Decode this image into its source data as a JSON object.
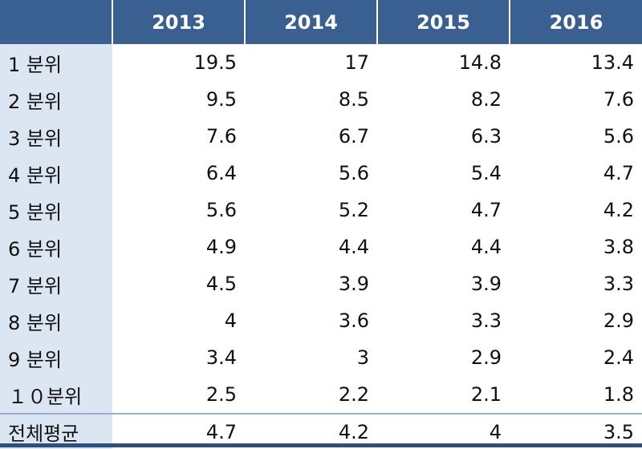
{
  "chart_data": {
    "type": "table",
    "columns": [
      "2013",
      "2014",
      "2015",
      "2016"
    ],
    "rows": [
      {
        "label": "1 분위",
        "values": [
          "19.5",
          "17",
          "14.8",
          "13.4"
        ]
      },
      {
        "label": "2 분위",
        "values": [
          "9.5",
          "8.5",
          "8.2",
          "7.6"
        ]
      },
      {
        "label": "3 분위",
        "values": [
          "7.6",
          "6.7",
          "6.3",
          "5.6"
        ]
      },
      {
        "label": "4 분위",
        "values": [
          "6.4",
          "5.6",
          "5.4",
          "4.7"
        ]
      },
      {
        "label": "5 분위",
        "values": [
          "5.6",
          "5.2",
          "4.7",
          "4.2"
        ]
      },
      {
        "label": "6 분위",
        "values": [
          "4.9",
          "4.4",
          "4.4",
          "3.8"
        ]
      },
      {
        "label": "7 분위",
        "values": [
          "4.5",
          "3.9",
          "3.9",
          "3.3"
        ]
      },
      {
        "label": "8 분위",
        "values": [
          "4",
          "3.6",
          "3.3",
          "2.9"
        ]
      },
      {
        "label": "9 분위",
        "values": [
          "3.4",
          "3",
          "2.9",
          "2.4"
        ]
      },
      {
        "label": "１０분위",
        "values": [
          "2.5",
          "2.2",
          "2.1",
          "1.8"
        ]
      }
    ],
    "total_row": {
      "label": "전체평균",
      "values": [
        "4.7",
        "4.2",
        "4",
        "3.5"
      ]
    },
    "colors": {
      "header_bg": "#3a5f91",
      "label_bg": "#dce6f2",
      "rule": "#2e4f7c"
    }
  }
}
